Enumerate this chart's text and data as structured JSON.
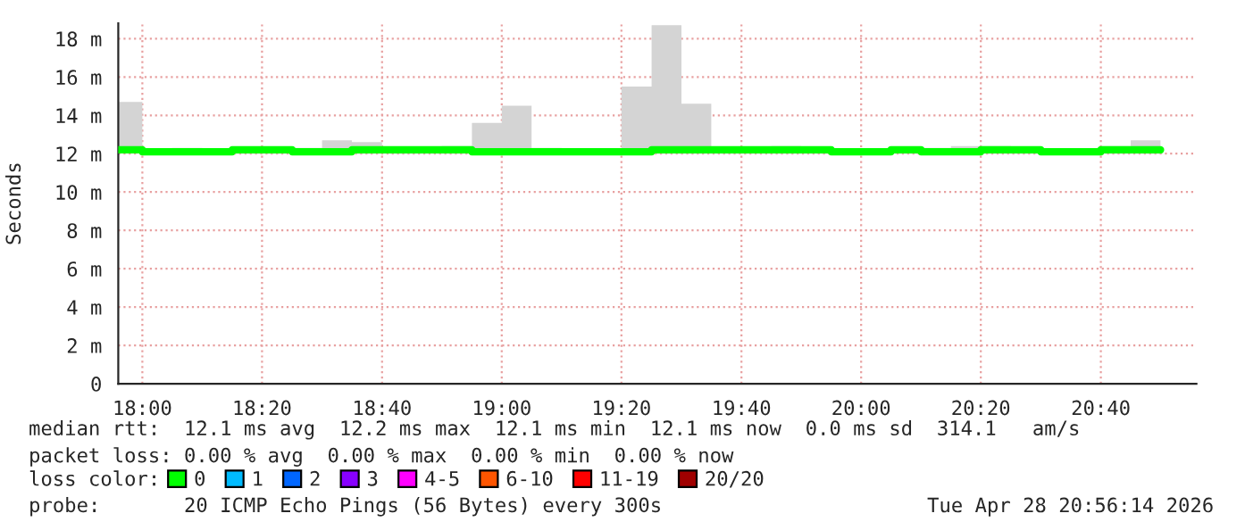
{
  "chart_data": {
    "type": "step",
    "ylabel": "Seconds",
    "legend_title": "loss color:",
    "x": [
      17.933,
      18.0,
      18.083,
      18.167,
      18.25,
      18.333,
      18.417,
      18.5,
      18.583,
      18.667,
      18.75,
      18.833,
      18.917,
      19.0,
      19.083,
      19.167,
      19.25,
      19.333,
      19.417,
      19.5,
      19.583,
      19.667,
      19.75,
      19.833,
      19.917,
      20.0,
      20.083,
      20.167,
      20.25,
      20.333,
      20.417,
      20.5,
      20.583,
      20.667,
      20.75,
      20.833
    ],
    "series": [
      {
        "name": "0",
        "color": "#00ff00",
        "values": [
          12.2,
          12.1,
          12.1,
          12.1,
          12.2,
          12.2,
          12.1,
          12.1,
          12.2,
          12.2,
          12.2,
          12.2,
          12.1,
          12.1,
          12.1,
          12.1,
          12.1,
          12.1,
          12.2,
          12.2,
          12.2,
          12.2,
          12.2,
          12.2,
          12.1,
          12.1,
          12.2,
          12.1,
          12.1,
          12.2,
          12.2,
          12.1,
          12.1,
          12.2,
          12.2,
          12.2
        ],
        "lower": [
          12.1,
          12.0,
          12.0,
          12.0,
          12.0,
          12.0,
          12.0,
          12.0,
          12.0,
          12.0,
          12.0,
          12.0,
          12.0,
          12.0,
          12.0,
          12.0,
          12.0,
          12.0,
          12.0,
          12.0,
          12.0,
          12.0,
          12.0,
          12.0,
          12.0,
          12.0,
          12.0,
          12.0,
          12.0,
          12.0,
          12.0,
          12.0,
          12.0,
          12.0,
          12.0,
          12.0
        ],
        "upper": [
          14.7,
          12.2,
          12.3,
          12.2,
          12.3,
          12.3,
          12.3,
          12.7,
          12.6,
          12.3,
          12.3,
          12.4,
          13.6,
          14.5,
          12.3,
          12.2,
          12.2,
          15.5,
          18.7,
          14.6,
          12.3,
          12.3,
          12.4,
          12.3,
          12.2,
          12.2,
          12.3,
          12.3,
          12.4,
          12.4,
          12.3,
          12.2,
          12.2,
          12.4,
          12.7,
          12.7
        ]
      },
      {
        "name": "1",
        "color": "#00bbff",
        "values": [
          null,
          null,
          null,
          null,
          null,
          null,
          null,
          null,
          null,
          null,
          null,
          null,
          null,
          null,
          null,
          null,
          null,
          null,
          null,
          null,
          null,
          null,
          null,
          null,
          null,
          null,
          null,
          null,
          null,
          null,
          null,
          null,
          null,
          null,
          null,
          null
        ]
      },
      {
        "name": "2",
        "color": "#0066ff",
        "values": [
          null,
          null,
          null,
          null,
          null,
          null,
          null,
          null,
          null,
          null,
          null,
          null,
          null,
          null,
          null,
          null,
          null,
          null,
          null,
          null,
          null,
          null,
          null,
          null,
          null,
          null,
          null,
          null,
          null,
          null,
          null,
          null,
          null,
          null,
          null,
          null
        ]
      },
      {
        "name": "3",
        "color": "#8800ff",
        "values": [
          null,
          null,
          null,
          null,
          null,
          null,
          null,
          null,
          null,
          null,
          null,
          null,
          null,
          null,
          null,
          null,
          null,
          null,
          null,
          null,
          null,
          null,
          null,
          null,
          null,
          null,
          null,
          null,
          null,
          null,
          null,
          null,
          null,
          null,
          null,
          null
        ]
      },
      {
        "name": "4-5",
        "color": "#ff00ff",
        "values": [
          null,
          null,
          null,
          null,
          null,
          null,
          null,
          null,
          null,
          null,
          null,
          null,
          null,
          null,
          null,
          null,
          null,
          null,
          null,
          null,
          null,
          null,
          null,
          null,
          null,
          null,
          null,
          null,
          null,
          null,
          null,
          null,
          null,
          null,
          null,
          null
        ]
      },
      {
        "name": "6-10",
        "color": "#ff5500",
        "values": [
          null,
          null,
          null,
          null,
          null,
          null,
          null,
          null,
          null,
          null,
          null,
          null,
          null,
          null,
          null,
          null,
          null,
          null,
          null,
          null,
          null,
          null,
          null,
          null,
          null,
          null,
          null,
          null,
          null,
          null,
          null,
          null,
          null,
          null,
          null,
          null
        ]
      },
      {
        "name": "11-19",
        "color": "#ff0000",
        "values": [
          null,
          null,
          null,
          null,
          null,
          null,
          null,
          null,
          null,
          null,
          null,
          null,
          null,
          null,
          null,
          null,
          null,
          null,
          null,
          null,
          null,
          null,
          null,
          null,
          null,
          null,
          null,
          null,
          null,
          null,
          null,
          null,
          null,
          null,
          null,
          null
        ]
      },
      {
        "name": "20/20",
        "color": "#a00000",
        "values": [
          null,
          null,
          null,
          null,
          null,
          null,
          null,
          null,
          null,
          null,
          null,
          null,
          null,
          null,
          null,
          null,
          null,
          null,
          null,
          null,
          null,
          null,
          null,
          null,
          null,
          null,
          null,
          null,
          null,
          null,
          null,
          null,
          null,
          null,
          null,
          null
        ]
      }
    ],
    "xlim": [
      17.933,
      20.933
    ],
    "xticks": [
      {
        "value": 18.0,
        "label": "18:00"
      },
      {
        "value": 18.333,
        "label": "18:20"
      },
      {
        "value": 18.667,
        "label": "18:40"
      },
      {
        "value": 19.0,
        "label": "19:00"
      },
      {
        "value": 19.333,
        "label": "19:20"
      },
      {
        "value": 19.667,
        "label": "19:40"
      },
      {
        "value": 20.0,
        "label": "20:00"
      },
      {
        "value": 20.333,
        "label": "20:20"
      },
      {
        "value": 20.667,
        "label": "20:40"
      }
    ],
    "ylim": [
      0,
      18.8
    ],
    "yticks": [
      0,
      {
        "value": 2,
        "label": "2 m"
      },
      {
        "value": 4,
        "label": "4 m"
      },
      {
        "value": 6,
        "label": "6 m"
      },
      {
        "value": 8,
        "label": "8 m"
      },
      {
        "value": 10,
        "label": "10 m"
      },
      {
        "value": 12,
        "label": "12 m"
      },
      {
        "value": 14,
        "label": "14 m"
      },
      {
        "value": 16,
        "label": "16 m"
      },
      {
        "value": 18,
        "label": "18 m"
      }
    ],
    "grid": true,
    "legend": "bottom",
    "annotations": [
      "median rtt:  12.1 ms avg  12.2 ms max  12.1 ms min  12.1 ms now  0.0 ms sd  314.1   am/s",
      "packet loss: 0.00 % avg  0.00 % max  0.00 % min  0.00 % now",
      "probe:       20 ICMP Echo Pings (56 Bytes) every 300s",
      "Tue Apr 28 20:56:14 2026"
    ]
  }
}
